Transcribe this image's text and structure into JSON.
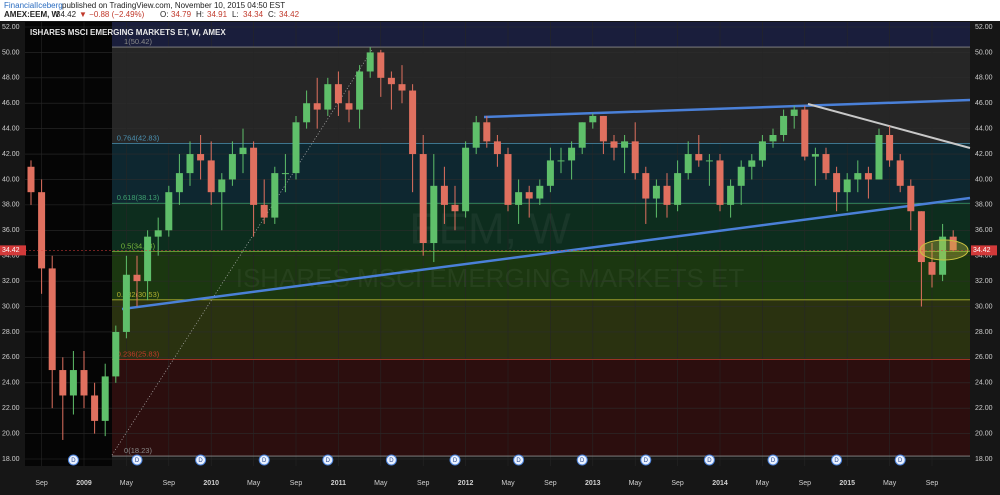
{
  "header": {
    "publisher": "FinancialIceberg",
    "published": "published on TradingView.com, November 10, 2015 04:50 EST",
    "symbol": "AMEX:EEM, W",
    "last": "34.42",
    "change": "▼ −0.88 (−2.49%)",
    "quote": [
      {
        "label": "O:",
        "value": "34.79"
      },
      {
        "label": "H:",
        "value": "34.91"
      },
      {
        "label": "L:",
        "value": "34.34"
      },
      {
        "label": "C:",
        "value": "34.42"
      }
    ]
  },
  "chart_data": {
    "type": "candlestick",
    "title": "ISHARES MSCI EMERGING MARKETS ET, W, AMEX",
    "watermark": "EEM, W",
    "watermark_sub": "ISHARES MSCI EMERGING MARKETS ET",
    "up_color": "#5fbf6a",
    "down_color": "#e0705f",
    "ylim": [
      18,
      52
    ],
    "yticks": [
      {
        "value": 18,
        "label": "18.00"
      },
      {
        "value": 20,
        "label": "20.00"
      },
      {
        "value": 22,
        "label": "22.00"
      },
      {
        "value": 24,
        "label": "24.00"
      },
      {
        "value": 26,
        "label": "26.00"
      },
      {
        "value": 28,
        "label": "28.00"
      },
      {
        "value": 30,
        "label": "30.00"
      },
      {
        "value": 32,
        "label": "32.00"
      },
      {
        "value": 34,
        "label": "34.00"
      },
      {
        "value": 36,
        "label": "36.00"
      },
      {
        "value": 38,
        "label": "38.00"
      },
      {
        "value": 40,
        "label": "40.00"
      },
      {
        "value": 42,
        "label": "42.00"
      },
      {
        "value": 44,
        "label": "44.00"
      },
      {
        "value": 46,
        "label": "46.00"
      },
      {
        "value": 48,
        "label": "48.00"
      },
      {
        "value": 50,
        "label": "50.00"
      },
      {
        "value": 52,
        "label": "52.00"
      }
    ],
    "xticks": [
      {
        "value": "2008-09",
        "label": "Sep"
      },
      {
        "value": "2009-01",
        "label": "2009"
      },
      {
        "value": "2009-05",
        "label": "May"
      },
      {
        "value": "2009-09",
        "label": "Sep"
      },
      {
        "value": "2010-01",
        "label": "2010"
      },
      {
        "value": "2010-05",
        "label": "May"
      },
      {
        "value": "2010-09",
        "label": "Sep"
      },
      {
        "value": "2011-01",
        "label": "2011"
      },
      {
        "value": "2011-05",
        "label": "May"
      },
      {
        "value": "2011-09",
        "label": "Sep"
      },
      {
        "value": "2012-01",
        "label": "2012"
      },
      {
        "value": "2012-05",
        "label": "May"
      },
      {
        "value": "2012-09",
        "label": "Sep"
      },
      {
        "value": "2013-01",
        "label": "2013"
      },
      {
        "value": "2013-05",
        "label": "May"
      },
      {
        "value": "2013-09",
        "label": "Sep"
      },
      {
        "value": "2014-01",
        "label": "2014"
      },
      {
        "value": "2014-05",
        "label": "May"
      },
      {
        "value": "2014-09",
        "label": "Sep"
      },
      {
        "value": "2015-01",
        "label": "2015"
      },
      {
        "value": "2015-05",
        "label": "May"
      },
      {
        "value": "2015-09",
        "label": "Sep"
      }
    ],
    "fib_levels": [
      {
        "value": 50.42,
        "label": "1(50.42)",
        "color": "#8a8a8a",
        "band": "#262626"
      },
      {
        "value": 42.83,
        "label": "0.764(42.83)",
        "color": "#4a90b0",
        "band": "#0e2730"
      },
      {
        "value": 38.13,
        "label": "0.618(38.13)",
        "color": "#3fa070",
        "band": "#0d2d1e"
      },
      {
        "value": 34.33,
        "label": "0.5(34.33)",
        "color": "#7ab83c",
        "band": "#1b3710"
      },
      {
        "value": 30.53,
        "label": "0.382(30.53)",
        "color": "#b0b030",
        "band": "#2a3210"
      },
      {
        "value": 25.83,
        "label": "0.236(25.83)",
        "color": "#c0392b",
        "band": "#2c0e0e"
      },
      {
        "value": 18.23,
        "label": "0(18.23)",
        "color": "#8a8a8a"
      }
    ],
    "dividends": [
      {
        "x": "2008-12",
        "label": "D"
      },
      {
        "x": "2009-06",
        "label": "D"
      },
      {
        "x": "2009-12",
        "label": "D"
      },
      {
        "x": "2010-06",
        "label": "D"
      },
      {
        "x": "2010-12",
        "label": "D"
      },
      {
        "x": "2011-06",
        "label": "D"
      },
      {
        "x": "2011-12",
        "label": "D"
      },
      {
        "x": "2012-06",
        "label": "D"
      },
      {
        "x": "2012-12",
        "label": "D"
      },
      {
        "x": "2013-06",
        "label": "D"
      },
      {
        "x": "2013-12",
        "label": "D"
      },
      {
        "x": "2014-06",
        "label": "D"
      },
      {
        "x": "2014-12",
        "label": "D"
      },
      {
        "x": "2015-06",
        "label": "D"
      }
    ],
    "x": [
      "2008-08",
      "2008-09",
      "2008-10",
      "2008-11",
      "2008-12",
      "2009-01",
      "2009-02",
      "2009-03",
      "2009-04",
      "2009-05",
      "2009-06",
      "2009-07",
      "2009-08",
      "2009-09",
      "2009-10",
      "2009-11",
      "2009-12",
      "2010-01",
      "2010-02",
      "2010-03",
      "2010-04",
      "2010-05",
      "2010-06",
      "2010-07",
      "2010-08",
      "2010-09",
      "2010-10",
      "2010-11",
      "2010-12",
      "2011-01",
      "2011-02",
      "2011-03",
      "2011-04",
      "2011-05",
      "2011-06",
      "2011-07",
      "2011-08",
      "2011-09",
      "2011-10",
      "2011-11",
      "2011-12",
      "2012-01",
      "2012-02",
      "2012-03",
      "2012-04",
      "2012-05",
      "2012-06",
      "2012-07",
      "2012-08",
      "2012-09",
      "2012-10",
      "2012-11",
      "2012-12",
      "2013-01",
      "2013-02",
      "2013-03",
      "2013-04",
      "2013-05",
      "2013-06",
      "2013-07",
      "2013-08",
      "2013-09",
      "2013-10",
      "2013-11",
      "2013-12",
      "2014-01",
      "2014-02",
      "2014-03",
      "2014-04",
      "2014-05",
      "2014-06",
      "2014-07",
      "2014-08",
      "2014-09",
      "2014-10",
      "2014-11",
      "2014-12",
      "2015-01",
      "2015-02",
      "2015-03",
      "2015-04",
      "2015-05",
      "2015-06",
      "2015-07",
      "2015-08",
      "2015-09",
      "2015-10",
      "2015-11"
    ],
    "ohlc": [
      [
        41,
        41.5,
        38,
        39
      ],
      [
        39,
        40,
        31,
        33
      ],
      [
        33,
        34,
        22,
        25
      ],
      [
        25,
        26,
        19.5,
        23
      ],
      [
        23,
        26.5,
        21.5,
        25
      ],
      [
        25,
        26.5,
        22,
        23
      ],
      [
        23,
        24,
        20,
        21
      ],
      [
        21,
        25.5,
        19.8,
        24.5
      ],
      [
        24.5,
        28.5,
        24,
        28
      ],
      [
        28,
        34,
        27.5,
        32.5
      ],
      [
        32.5,
        34,
        30,
        32
      ],
      [
        32,
        36,
        30.5,
        35.5
      ],
      [
        35.5,
        37,
        34,
        36
      ],
      [
        36,
        39.5,
        35.5,
        39
      ],
      [
        39,
        42,
        38,
        40.5
      ],
      [
        40.5,
        43,
        39.5,
        42
      ],
      [
        42,
        43.5,
        40,
        41.5
      ],
      [
        41.5,
        43,
        38,
        39
      ],
      [
        39,
        40.5,
        36,
        40
      ],
      [
        40,
        43,
        39.5,
        42
      ],
      [
        42,
        44,
        40.5,
        42.5
      ],
      [
        42.5,
        43,
        35.5,
        38
      ],
      [
        38,
        40,
        36.5,
        37
      ],
      [
        37,
        41,
        36.5,
        40.5
      ],
      [
        40.5,
        42,
        39,
        40.5
      ],
      [
        40.5,
        45,
        40,
        44.5
      ],
      [
        44.5,
        47,
        44,
        46
      ],
      [
        46,
        48,
        44,
        45.5
      ],
      [
        45.5,
        48,
        45,
        47.5
      ],
      [
        47.5,
        48.5,
        45,
        46
      ],
      [
        46,
        47,
        44.5,
        45.5
      ],
      [
        45.5,
        49,
        44,
        48.5
      ],
      [
        48.5,
        50.42,
        48,
        50
      ],
      [
        50,
        50.2,
        46.5,
        48
      ],
      [
        48,
        48.5,
        45.5,
        47.5
      ],
      [
        47.5,
        49,
        46,
        47
      ],
      [
        47,
        47.5,
        39,
        42
      ],
      [
        42,
        43.5,
        34,
        35
      ],
      [
        35,
        42,
        33.5,
        39.5
      ],
      [
        39.5,
        41,
        36.5,
        38
      ],
      [
        38,
        39.5,
        36,
        37.5
      ],
      [
        37.5,
        43,
        37,
        42.5
      ],
      [
        42.5,
        45,
        42,
        44.5
      ],
      [
        44.5,
        45,
        42.5,
        43
      ],
      [
        43,
        43.5,
        41,
        42
      ],
      [
        42,
        42.5,
        37.5,
        38
      ],
      [
        38,
        40,
        36.5,
        39
      ],
      [
        39,
        39.5,
        37,
        38.5
      ],
      [
        38.5,
        40,
        38,
        39.5
      ],
      [
        39.5,
        42.5,
        39,
        41.5
      ],
      [
        41.5,
        42.5,
        40.5,
        41.5
      ],
      [
        41.5,
        43,
        40,
        42.5
      ],
      [
        42.5,
        44.5,
        42,
        44.5
      ],
      [
        44.5,
        45.2,
        44,
        45
      ],
      [
        45,
        45,
        42,
        43
      ],
      [
        43,
        43.5,
        41.5,
        42.5
      ],
      [
        42.5,
        43.5,
        40.5,
        43
      ],
      [
        43,
        44.5,
        40,
        40.5
      ],
      [
        40.5,
        41,
        36.5,
        38.5
      ],
      [
        38.5,
        40,
        37,
        39.5
      ],
      [
        39.5,
        40.5,
        37,
        38
      ],
      [
        38,
        41.5,
        37.5,
        40.5
      ],
      [
        40.5,
        43,
        40,
        42
      ],
      [
        42,
        43.5,
        41,
        41.5
      ],
      [
        41.5,
        42,
        39.5,
        41.5
      ],
      [
        41.5,
        42,
        37.5,
        38
      ],
      [
        38,
        40,
        37,
        39.5
      ],
      [
        39.5,
        41.5,
        38,
        41
      ],
      [
        41,
        42,
        40,
        41.5
      ],
      [
        41.5,
        43.5,
        41,
        43
      ],
      [
        43,
        44,
        42.5,
        43.5
      ],
      [
        43.5,
        45.5,
        43,
        45
      ],
      [
        45,
        45.8,
        44,
        45.5
      ],
      [
        45.5,
        45.8,
        41.5,
        41.8
      ],
      [
        41.8,
        42.5,
        39.5,
        42
      ],
      [
        42,
        42.5,
        40,
        40.5
      ],
      [
        40.5,
        41,
        37.5,
        39
      ],
      [
        39,
        40.5,
        37.5,
        40
      ],
      [
        40,
        41.5,
        39,
        40.5
      ],
      [
        40.5,
        41,
        38.5,
        40
      ],
      [
        40,
        44,
        40,
        43.5
      ],
      [
        43.5,
        44.2,
        41,
        41.5
      ],
      [
        41.5,
        42,
        39,
        39.5
      ],
      [
        39.5,
        40,
        36,
        37.5
      ],
      [
        37.5,
        37.5,
        30,
        33.5
      ],
      [
        33.5,
        35,
        31.5,
        32.5
      ],
      [
        32.5,
        36.5,
        32,
        35.5
      ],
      [
        35.5,
        36,
        34.34,
        34.42
      ]
    ]
  }
}
